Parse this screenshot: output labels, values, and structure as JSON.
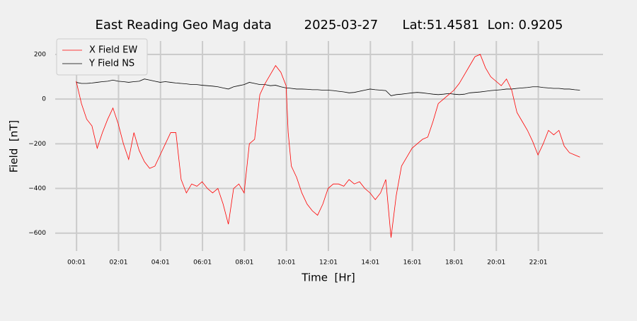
{
  "chart_data": {
    "type": "line",
    "title": "East Reading Geo Mag data        2025-03-27      Lat:51.4581  Lon: 0.9205",
    "xlabel": "Time  [Hr]",
    "ylabel": "Field  [nT]",
    "x": [
      0,
      0.25,
      0.5,
      0.75,
      1,
      1.25,
      1.5,
      1.75,
      2,
      2.25,
      2.5,
      2.75,
      3,
      3.25,
      3.5,
      3.75,
      4,
      4.25,
      4.5,
      4.75,
      5,
      5.25,
      5.5,
      5.75,
      6,
      6.25,
      6.5,
      6.75,
      7,
      7.25,
      7.5,
      7.75,
      8,
      8.25,
      8.5,
      8.75,
      9,
      9.25,
      9.5,
      9.75,
      10,
      10.1,
      10.25,
      10.5,
      10.75,
      11,
      11.25,
      11.5,
      11.75,
      12,
      12.25,
      12.5,
      12.75,
      13,
      13.25,
      13.5,
      13.75,
      14,
      14.25,
      14.5,
      14.75,
      15,
      15.25,
      15.5,
      15.75,
      16,
      16.25,
      16.5,
      16.75,
      17,
      17.25,
      17.5,
      17.75,
      18,
      18.25,
      18.5,
      18.75,
      19,
      19.25,
      19.5,
      19.75,
      20,
      20.25,
      20.5,
      20.75,
      21,
      21.25,
      21.5,
      21.75,
      22,
      22.25,
      22.5,
      22.75,
      23,
      23.25,
      23.5,
      23.75,
      24
    ],
    "series": [
      {
        "name": "X Field EW",
        "color": "#ff0000",
        "values": [
          80,
          -20,
          -90,
          -120,
          -220,
          -150,
          -90,
          -40,
          -110,
          -200,
          -270,
          -150,
          -230,
          -280,
          -310,
          -300,
          -250,
          -200,
          -150,
          -150,
          -360,
          -420,
          -380,
          -390,
          -370,
          -400,
          -420,
          -400,
          -470,
          -560,
          -400,
          -380,
          -420,
          -200,
          -180,
          20,
          70,
          110,
          150,
          120,
          60,
          -150,
          -300,
          -350,
          -420,
          -470,
          -500,
          -520,
          -470,
          -400,
          -380,
          -380,
          -390,
          -360,
          -380,
          -370,
          -400,
          -420,
          -450,
          -420,
          -360,
          -620,
          -430,
          -300,
          -260,
          -220,
          -200,
          -180,
          -170,
          -100,
          -20,
          0,
          20,
          40,
          70,
          110,
          150,
          190,
          200,
          140,
          100,
          80,
          60,
          90,
          40,
          -60,
          -100,
          -140,
          -190,
          -250,
          -200,
          -140,
          -160,
          -140,
          -210,
          -240,
          -250,
          -260
        ]
      },
      {
        "name": "Y Field NS",
        "color": "#000000",
        "values": [
          75,
          70,
          70,
          72,
          75,
          78,
          80,
          85,
          80,
          78,
          75,
          78,
          80,
          90,
          85,
          80,
          75,
          78,
          75,
          72,
          70,
          68,
          65,
          65,
          62,
          60,
          58,
          55,
          50,
          45,
          55,
          60,
          65,
          75,
          70,
          65,
          65,
          60,
          62,
          55,
          50,
          50,
          48,
          45,
          45,
          44,
          42,
          42,
          40,
          40,
          38,
          35,
          32,
          28,
          30,
          35,
          40,
          45,
          42,
          40,
          38,
          15,
          20,
          22,
          25,
          28,
          30,
          28,
          25,
          22,
          20,
          22,
          25,
          22,
          20,
          22,
          28,
          30,
          32,
          35,
          38,
          40,
          42,
          45,
          45,
          48,
          50,
          52,
          55,
          55,
          52,
          50,
          48,
          48,
          45,
          45,
          42,
          40
        ]
      }
    ],
    "xlim": [
      -1,
      25.1
    ],
    "xticks": [
      {
        "value": 0.0167,
        "label": "00:01"
      },
      {
        "value": 2.0167,
        "label": "02:01"
      },
      {
        "value": 4.0167,
        "label": "04:01"
      },
      {
        "value": 6.0167,
        "label": "06:01"
      },
      {
        "value": 8.0167,
        "label": "08:01"
      },
      {
        "value": 10.0167,
        "label": "10:01"
      },
      {
        "value": 12.0167,
        "label": "12:01"
      },
      {
        "value": 14.0167,
        "label": "14:01"
      },
      {
        "value": 16.0167,
        "label": "16:01"
      },
      {
        "value": 18.0167,
        "label": "18:01"
      },
      {
        "value": 20.0167,
        "label": "20:01"
      },
      {
        "value": 22.0167,
        "label": "22:01"
      }
    ],
    "ylim": [
      -680,
      260
    ],
    "yticks": [
      {
        "value": -600,
        "label": "−600"
      },
      {
        "value": -400,
        "label": "−400"
      },
      {
        "value": -200,
        "label": "−200"
      },
      0,
      200
    ],
    "grid": true,
    "legend": "upper left"
  }
}
